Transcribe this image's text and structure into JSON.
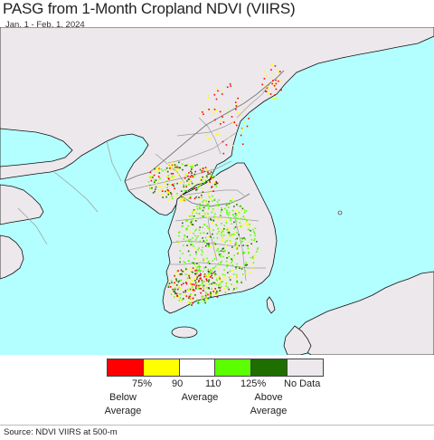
{
  "header": {
    "title": "PASG from 1-Month Cropland NDVI (VIIRS)",
    "date_range": "Jan. 1 - Feb. 1, 2024"
  },
  "map": {
    "colors": {
      "sea": "#b3ffff",
      "land": "#ede8ec",
      "border": "#9a9a9a",
      "coast": "#111111"
    }
  },
  "legend": {
    "swatches": [
      {
        "color": "#ff0000",
        "name": "legend-swatch-below-75"
      },
      {
        "color": "#ffff00",
        "name": "legend-swatch-75-90"
      },
      {
        "color": "#ffffff",
        "name": "legend-swatch-90-110"
      },
      {
        "color": "#5cff00",
        "name": "legend-swatch-110-125"
      },
      {
        "color": "#1e6e00",
        "name": "legend-swatch-above-125"
      },
      {
        "color": "#ede8ec",
        "name": "legend-swatch-no-data"
      }
    ],
    "ticks": [
      "75%",
      "90",
      "110",
      "125%"
    ],
    "no_data": "No Data",
    "below": [
      "Below",
      "Average"
    ],
    "average": "Average",
    "above": [
      "Above",
      "Average"
    ]
  },
  "footer": {
    "source": "Source: NDVI VIIRS at 500-m"
  }
}
